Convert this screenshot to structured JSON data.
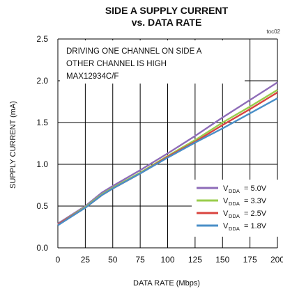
{
  "chart_data": {
    "type": "line",
    "title_line1": "SIDE A SUPPLY CURRENT",
    "title_line2": "vs. DATA RATE",
    "tag": "toc02",
    "xlabel": "DATA RATE (Mbps)",
    "ylabel": "SUPPLY CURRENT (mA)",
    "xlim": [
      0,
      200
    ],
    "ylim": [
      0,
      2.5
    ],
    "x_ticks": [
      0,
      25,
      50,
      75,
      100,
      125,
      150,
      175,
      200
    ],
    "x_tick_labels": [
      "0",
      "25",
      "50",
      "75",
      "100",
      "125",
      "150",
      "175",
      "200"
    ],
    "y_ticks": [
      0,
      0.5,
      1.0,
      1.5,
      2.0,
      2.5
    ],
    "y_tick_labels": [
      "0.0",
      "0.5",
      "1.0",
      "1.5",
      "2.0",
      "2.5"
    ],
    "grid": true,
    "annotation": [
      "DRIVING ONE CHANNEL ON SIDE A",
      "OTHER CHANNEL IS HIGH",
      "MAX12934C/F"
    ],
    "legend_position": "bottom-right",
    "legend_prefix": "V",
    "legend_sub": "DDA",
    "x": [
      0,
      25,
      40,
      50,
      75,
      100,
      125,
      150,
      175,
      200
    ],
    "series": [
      {
        "name": "= 5.0V",
        "color": "#8e6cb8",
        "values": [
          0.29,
          0.5,
          0.66,
          0.74,
          0.93,
          1.13,
          1.34,
          1.56,
          1.77,
          1.98
        ]
      },
      {
        "name": "= 3.3V",
        "color": "#9acd4c",
        "values": [
          0.28,
          0.49,
          0.64,
          0.72,
          0.9,
          1.1,
          1.29,
          1.5,
          1.69,
          1.89
        ]
      },
      {
        "name": "= 2.5V",
        "color": "#d9443f",
        "values": [
          0.28,
          0.48,
          0.63,
          0.71,
          0.89,
          1.09,
          1.27,
          1.47,
          1.66,
          1.86
        ]
      },
      {
        "name": "= 1.8V",
        "color": "#4a8fc7",
        "values": [
          0.27,
          0.48,
          0.63,
          0.71,
          0.89,
          1.08,
          1.26,
          1.43,
          1.61,
          1.79
        ]
      }
    ]
  }
}
